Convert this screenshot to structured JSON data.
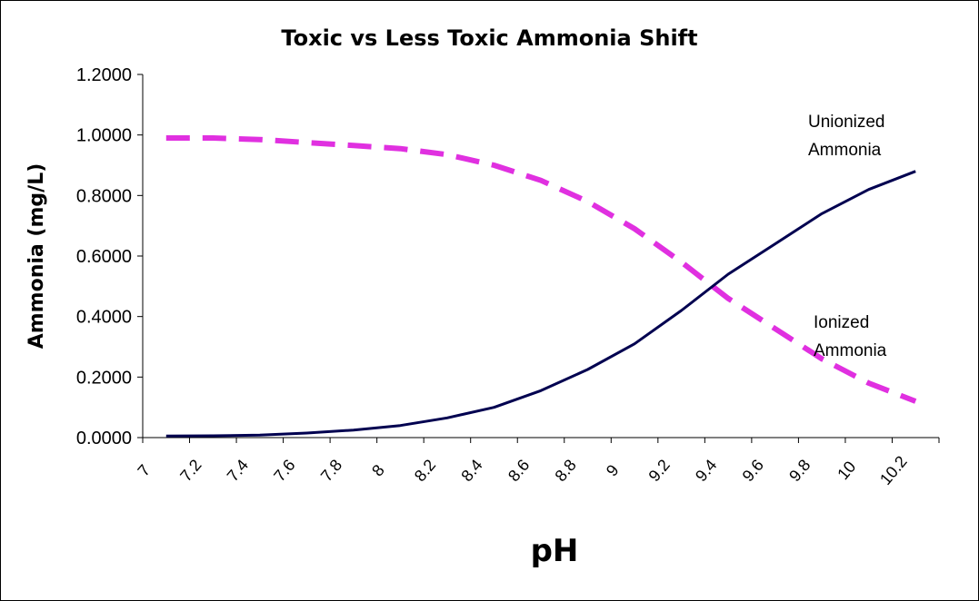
{
  "chart_data": {
    "type": "line",
    "title": "Toxic vs Less Toxic Ammonia Shift",
    "xlabel": "pH",
    "ylabel": "Ammonia (mg/L)",
    "x": [
      "7",
      "7.2",
      "7.4",
      "7.6",
      "7.8",
      "8",
      "8.2",
      "8.4",
      "8.6",
      "8.8",
      "9",
      "9.2",
      "9.4",
      "9.6",
      "9.8",
      "10",
      "10.2"
    ],
    "ylim": [
      0,
      1.2
    ],
    "yticks": [
      "0.0000",
      "0.2000",
      "0.4000",
      "0.6000",
      "0.8000",
      "1.0000",
      "1.2000"
    ],
    "grid": false,
    "series": [
      {
        "name": "Ionized Ammonia",
        "color": "#e030e0",
        "style": "dashed",
        "values": [
          0.99,
          0.99,
          0.985,
          0.975,
          0.965,
          0.955,
          0.935,
          0.9,
          0.85,
          0.78,
          0.69,
          0.58,
          0.46,
          0.36,
          0.26,
          0.18,
          0.12
        ]
      },
      {
        "name": "Unionized Ammonia",
        "color": "#000050",
        "style": "solid",
        "values": [
          0.005,
          0.006,
          0.008,
          0.015,
          0.025,
          0.04,
          0.065,
          0.1,
          0.155,
          0.225,
          0.31,
          0.42,
          0.54,
          0.64,
          0.74,
          0.82,
          0.88
        ]
      }
    ],
    "annotations": [
      {
        "text": [
          "Unionized",
          "Ammonia"
        ]
      },
      {
        "text": [
          "Ionized",
          "Ammonia"
        ]
      }
    ]
  }
}
